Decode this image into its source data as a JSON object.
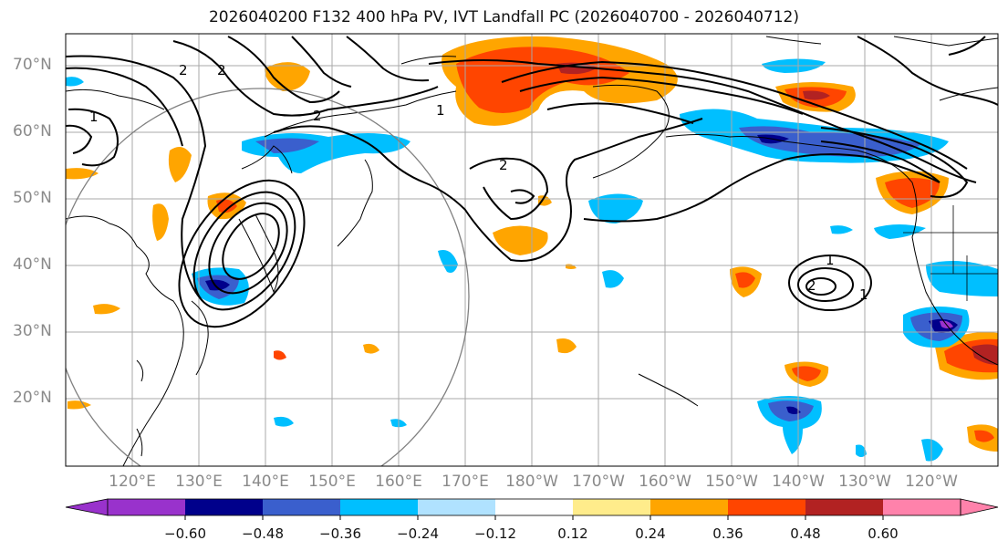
{
  "title": "2026040200 F132 400 hPa PV, IVT Landfall PC (2026040700 - 2026040712)",
  "lat_labels": [
    "70°N",
    "60°N",
    "50°N",
    "40°N",
    "30°N",
    "20°N"
  ],
  "lon_labels": [
    "120°E",
    "130°E",
    "140°E",
    "150°E",
    "160°E",
    "170°E",
    "180°W",
    "170°W",
    "160°W",
    "150°W",
    "140°W",
    "130°W",
    "120°W"
  ],
  "contour_labels": [
    "2",
    "2",
    "2",
    "1",
    "2",
    "1",
    "1",
    "2",
    "1"
  ],
  "colorbar": {
    "ticks": [
      "−0.60",
      "−0.48",
      "−0.36",
      "−0.24",
      "−0.12",
      "0.12",
      "0.24",
      "0.36",
      "0.48",
      "0.60"
    ],
    "colors": [
      "#9932cc",
      "#00008b",
      "#3a5fcd",
      "#00bfff",
      "#b0e2ff",
      "#ffffff",
      "#ffec8b",
      "#ffa500",
      "#ff4500",
      "#b22222",
      "#ff82ab"
    ]
  }
}
